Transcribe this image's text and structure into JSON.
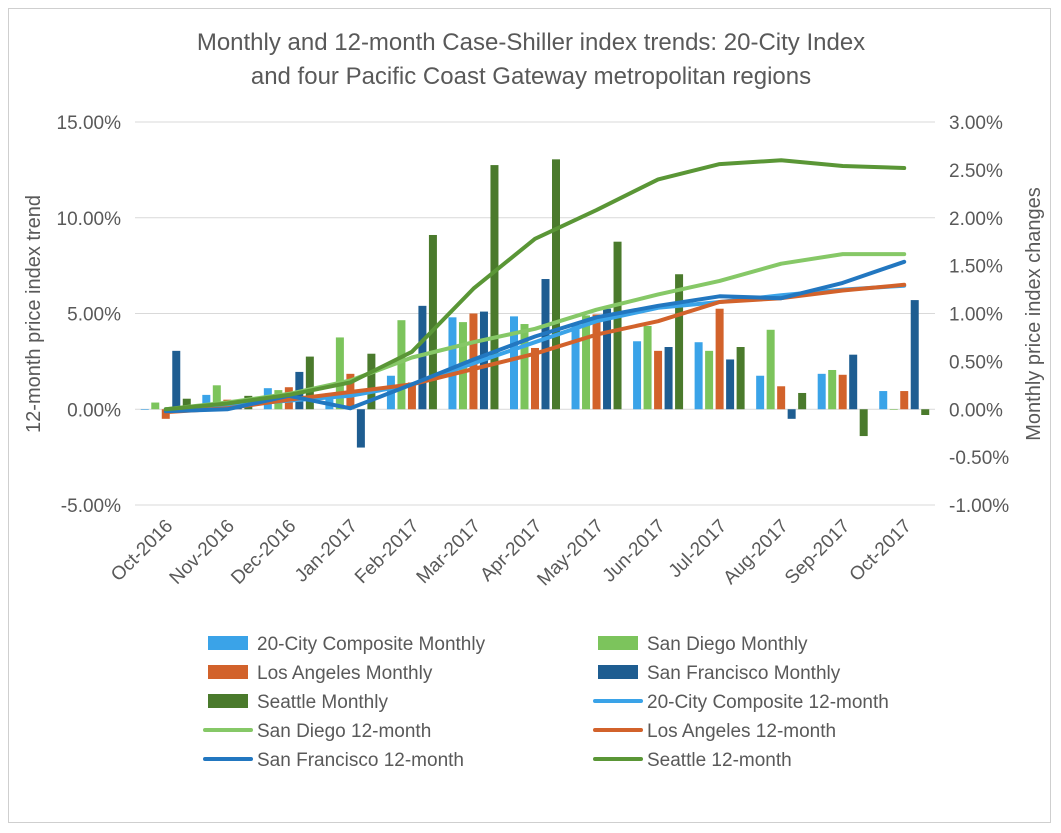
{
  "chart_data": {
    "type": "bar+line",
    "title_lines": [
      "Monthly and 12-month Case-Shiller index trends: 20-City Index",
      "and four Pacific Coast Gateway metropolitan regions"
    ],
    "ylabel_left": "12-month price index trend",
    "ylabel_right": "Monthly price index changes",
    "categories": [
      "Oct-2016",
      "Nov-2016",
      "Dec-2016",
      "Jan-2017",
      "Feb-2017",
      "Mar-2017",
      "Apr-2017",
      "May-2017",
      "Jun-2017",
      "Jul-2017",
      "Aug-2017",
      "Sep-2017",
      "Oct-2017"
    ],
    "left_axis": {
      "min": -5,
      "max": 15,
      "ticks": [
        15,
        10,
        5,
        0,
        -5
      ],
      "tick_labels": [
        "15.00%",
        "10.00%",
        "5.00%",
        "0.00%",
        "-5.00%"
      ]
    },
    "right_axis": {
      "min": -1,
      "max": 3,
      "ticks": [
        3,
        2.5,
        2,
        1.5,
        1,
        0.5,
        0,
        -0.5,
        -1
      ],
      "tick_labels": [
        "3.00%",
        "2.50%",
        "2.00%",
        "1.50%",
        "1.00%",
        "0.50%",
        "0.00%",
        "-0.50%",
        "-1.00%"
      ]
    },
    "bar_series": [
      {
        "name": "20-City Composite Monthly",
        "color": "#3aa3e8",
        "values": [
          0.0,
          0.15,
          0.22,
          0.17,
          0.35,
          0.96,
          0.97,
          0.9,
          0.71,
          0.7,
          0.35,
          0.37,
          0.19
        ]
      },
      {
        "name": "San Diego Monthly",
        "color": "#7cc45c",
        "values": [
          0.07,
          0.25,
          0.2,
          0.75,
          0.93,
          0.91,
          0.89,
          0.98,
          0.87,
          0.61,
          0.83,
          0.41,
          0.0
        ]
      },
      {
        "name": "Los Angeles Monthly",
        "color": "#d2622b",
        "values": [
          -0.1,
          0.1,
          0.23,
          0.37,
          0.28,
          1.0,
          0.64,
          0.99,
          0.61,
          1.05,
          0.24,
          0.36,
          0.19
        ]
      },
      {
        "name": "San Francisco Monthly",
        "color": "#1e5d91",
        "values": [
          0.61,
          0.09,
          0.39,
          -0.4,
          1.08,
          1.02,
          1.36,
          1.05,
          0.65,
          0.52,
          -0.1,
          0.57,
          1.14
        ]
      },
      {
        "name": "Seattle Monthly",
        "color": "#4a7a2c",
        "values": [
          0.11,
          0.14,
          0.55,
          0.58,
          1.82,
          2.55,
          2.61,
          1.75,
          1.41,
          0.65,
          0.17,
          -0.28,
          -0.06
        ]
      }
    ],
    "line_series": [
      {
        "name": "20-City Composite 12-month",
        "color": "#3aa3e8",
        "values": [
          0.0,
          0.18,
          0.45,
          0.7,
          1.3,
          2.4,
          3.5,
          4.6,
          5.3,
          5.6,
          5.95,
          6.25,
          6.45
        ]
      },
      {
        "name": "San Diego 12-month",
        "color": "#86c867",
        "values": [
          0.0,
          0.35,
          0.8,
          1.5,
          2.7,
          3.5,
          4.2,
          5.2,
          6.0,
          6.7,
          7.6,
          8.1,
          8.1
        ]
      },
      {
        "name": "Los Angeles 12-month",
        "color": "#d2622b",
        "values": [
          -0.15,
          0.05,
          0.5,
          0.9,
          1.3,
          2.1,
          2.9,
          3.9,
          4.6,
          5.6,
          5.8,
          6.2,
          6.5
        ]
      },
      {
        "name": "San Francisco 12-month",
        "color": "#2277c0",
        "values": [
          -0.1,
          0.0,
          0.7,
          0.05,
          1.3,
          2.6,
          3.8,
          4.8,
          5.4,
          5.9,
          5.8,
          6.6,
          7.7
        ]
      },
      {
        "name": "Seattle 12-month",
        "color": "#5a9636",
        "values": [
          0.0,
          0.3,
          0.75,
          1.4,
          3.0,
          6.3,
          8.9,
          10.4,
          12.0,
          12.8,
          13.0,
          12.7,
          12.6
        ]
      }
    ],
    "legend": {
      "position": "bottom",
      "items": [
        {
          "label": "20-City Composite Monthly",
          "kind": "bar",
          "color": "#3aa3e8"
        },
        {
          "label": "San Diego Monthly",
          "kind": "bar",
          "color": "#7cc45c"
        },
        {
          "label": "Los Angeles Monthly",
          "kind": "bar",
          "color": "#d2622b"
        },
        {
          "label": "San Francisco Monthly",
          "kind": "bar",
          "color": "#1e5d91"
        },
        {
          "label": "Seattle Monthly",
          "kind": "bar",
          "color": "#4a7a2c"
        },
        {
          "label": "20-City Composite 12-month",
          "kind": "line",
          "color": "#3aa3e8"
        },
        {
          "label": "San Diego 12-month",
          "kind": "line",
          "color": "#86c867"
        },
        {
          "label": "Los Angeles 12-month",
          "kind": "line",
          "color": "#d2622b"
        },
        {
          "label": "San Francisco 12-month",
          "kind": "line",
          "color": "#2277c0"
        },
        {
          "label": "Seattle 12-month",
          "kind": "line",
          "color": "#5a9636"
        }
      ]
    },
    "grid": true
  }
}
